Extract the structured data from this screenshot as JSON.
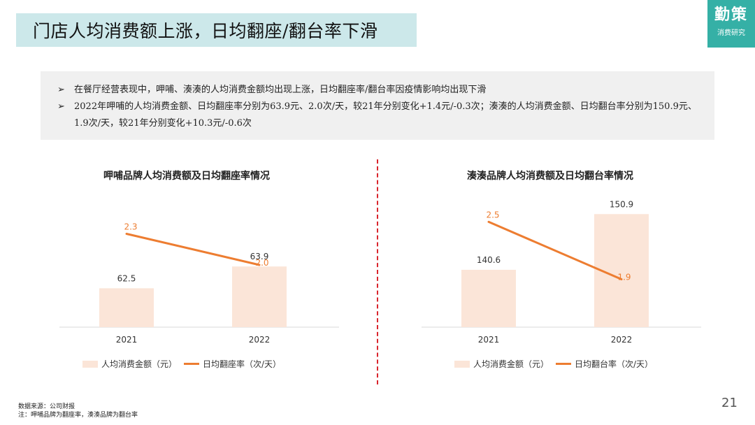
{
  "header": {
    "title": "门店人均消费额上涨，日均翻座/翻台率下滑"
  },
  "logo": {
    "main": "勤策",
    "sub": "消费研究"
  },
  "summary": {
    "bullet_mark": "➢",
    "bullets": [
      "在餐厅经营表现中，呷哺、湊湊的人均消费金额均出现上涨，日均翻座率/翻台率因疫情影响均出现下滑",
      "2022年呷哺的人均消费金额、日均翻座率分别为63.9元、2.0次/天，较21年分别变化+1.4元/-0.3次；湊湊的人均消费金额、日均翻台率分别为150.9元、1.9次/天，较21年分别变化+10.3元/-0.6次"
    ]
  },
  "colors": {
    "bar": "#fbe5d8",
    "line": "#ed7d31",
    "title_bg": "#cce8ea",
    "logo_bg": "#35b0a6",
    "divider": "#d9252d"
  },
  "chart_data": [
    {
      "type": "bar",
      "title": "呷哺品牌人均消费额及日均翻座率情况",
      "categories": [
        "2021",
        "2022"
      ],
      "series": [
        {
          "name": "人均消费金额（元）",
          "type": "bar",
          "values": [
            62.5,
            63.9
          ],
          "labels": [
            "62.5",
            "63.9"
          ]
        },
        {
          "name": "日均翻座率（次/天）",
          "type": "line",
          "values": [
            2.3,
            2.0
          ],
          "labels": [
            "2.3",
            "2.0"
          ]
        }
      ],
      "legend": [
        "人均消费金额（元）",
        "日均翻座率（次/天）"
      ],
      "legend_position": "bottom",
      "bar_ylim": [
        60,
        68
      ],
      "line_ylim": [
        1.4,
        2.6
      ],
      "grid": false
    },
    {
      "type": "bar",
      "title": "湊湊品牌人均消费额及日均翻台率情况",
      "categories": [
        "2021",
        "2022"
      ],
      "series": [
        {
          "name": "人均消费金额（元）",
          "type": "bar",
          "values": [
            140.6,
            150.9
          ],
          "labels": [
            "140.6",
            "150.9"
          ]
        },
        {
          "name": "日均翻台率（次/天）",
          "type": "line",
          "values": [
            2.5,
            1.9
          ],
          "labels": [
            "2.5",
            "1.9"
          ]
        }
      ],
      "legend": [
        "人均消费金额（元）",
        "日均翻台率（次/天）"
      ],
      "legend_position": "bottom",
      "bar_ylim": [
        130,
        153
      ],
      "line_ylim": [
        1.4,
        2.7
      ],
      "grid": false
    }
  ],
  "footnotes": [
    "数据来源：公司财报",
    "注：呷哺品牌为翻座率，湊湊品牌为翻台率"
  ],
  "page_number": "21"
}
